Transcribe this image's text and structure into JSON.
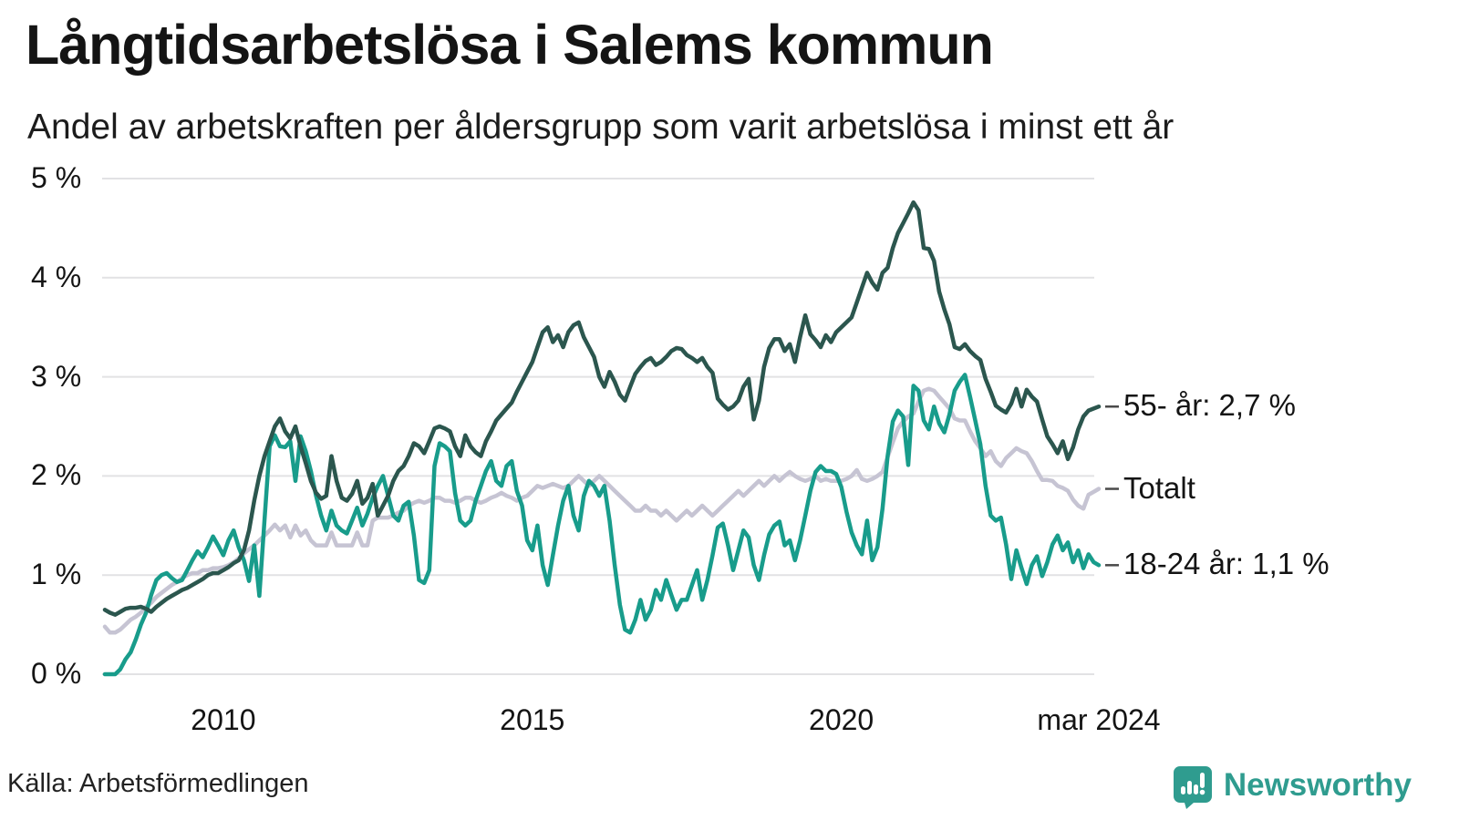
{
  "header": {
    "title": "Långtidsarbetslösa i Salems kommun",
    "subtitle": "Andel av arbetskraften per åldersgrupp som varit arbetslösa i minst ett år"
  },
  "footer": {
    "source": "Källa: Arbetsförmedlingen",
    "brand": "Newsworthy"
  },
  "colors": {
    "background": "#ffffff",
    "text": "#141414",
    "gridline": "#e2e2e4",
    "legend_dash": "#4a4a4a",
    "brand_teal": "#2f9c8f",
    "series_55": "#2b564e",
    "series_totalt": "#c6c4d3",
    "series_1824": "#189c8b"
  },
  "chart_data": {
    "type": "line",
    "title": "Långtidsarbetslösa i Salems kommun",
    "subtitle": "Andel av arbetskraften per åldersgrupp som varit arbetslösa i minst ett år",
    "xlabel": "",
    "ylabel": "",
    "x_start": "2008-02",
    "x_end": "2024-03",
    "x_frequency": "monthly",
    "ylim": [
      0,
      5
    ],
    "grid": true,
    "legend_position": "right-of-line-end",
    "y_tick_labels": [
      "0 %",
      "1 %",
      "2 %",
      "3 %",
      "4 %",
      "5 %"
    ],
    "x_ticks": [
      {
        "label": "2010",
        "index": 23
      },
      {
        "label": "2015",
        "index": 83
      },
      {
        "label": "2020",
        "index": 143
      },
      {
        "label": "mar 2024",
        "index": 193
      }
    ],
    "series": [
      {
        "name": "Totalt",
        "end_label": "Totalt",
        "color": "#c6c4d3",
        "values": [
          0.48,
          0.42,
          0.42,
          0.45,
          0.5,
          0.55,
          0.58,
          0.62,
          0.68,
          0.72,
          0.78,
          0.82,
          0.86,
          0.9,
          0.93,
          0.97,
          1.0,
          1.02,
          1.02,
          1.05,
          1.05,
          1.07,
          1.07,
          1.08,
          1.1,
          1.13,
          1.17,
          1.22,
          1.26,
          1.3,
          1.35,
          1.4,
          1.45,
          1.51,
          1.45,
          1.5,
          1.38,
          1.5,
          1.4,
          1.45,
          1.35,
          1.3,
          1.3,
          1.3,
          1.43,
          1.3,
          1.3,
          1.3,
          1.3,
          1.43,
          1.3,
          1.3,
          1.55,
          1.58,
          1.58,
          1.58,
          1.6,
          1.63,
          1.65,
          1.7,
          1.73,
          1.75,
          1.73,
          1.75,
          1.78,
          1.78,
          1.75,
          1.75,
          1.73,
          1.75,
          1.78,
          1.78,
          1.75,
          1.73,
          1.75,
          1.78,
          1.8,
          1.83,
          1.8,
          1.78,
          1.75,
          1.78,
          1.8,
          1.85,
          1.9,
          1.88,
          1.9,
          1.92,
          1.9,
          1.88,
          1.9,
          1.95,
          2.0,
          1.95,
          1.9,
          1.95,
          2.0,
          1.95,
          1.9,
          1.85,
          1.8,
          1.75,
          1.7,
          1.65,
          1.65,
          1.7,
          1.65,
          1.65,
          1.6,
          1.65,
          1.6,
          1.55,
          1.6,
          1.65,
          1.6,
          1.65,
          1.7,
          1.65,
          1.6,
          1.65,
          1.7,
          1.75,
          1.8,
          1.85,
          1.8,
          1.85,
          1.9,
          1.95,
          1.9,
          1.95,
          2.0,
          1.95,
          2.0,
          2.04,
          2.0,
          1.97,
          1.95,
          1.97,
          2.0,
          1.95,
          1.97,
          1.95,
          1.95,
          1.95,
          1.97,
          2.0,
          2.06,
          1.97,
          1.95,
          1.97,
          2.0,
          2.04,
          2.19,
          2.34,
          2.48,
          2.55,
          2.6,
          2.63,
          2.75,
          2.86,
          2.88,
          2.86,
          2.8,
          2.74,
          2.68,
          2.58,
          2.56,
          2.56,
          2.45,
          2.35,
          2.28,
          2.2,
          2.25,
          2.15,
          2.1,
          2.18,
          2.23,
          2.28,
          2.25,
          2.23,
          2.15,
          2.05,
          1.96,
          1.96,
          1.95,
          1.9,
          1.88,
          1.85,
          1.76,
          1.7,
          1.67,
          1.81,
          1.84,
          1.87
        ]
      },
      {
        "name": "18-24 år",
        "end_label": "18-24 år: 1,1 %",
        "end_value": "1,1 %",
        "color": "#189c8b",
        "values": [
          0.0,
          0.0,
          0.0,
          0.05,
          0.15,
          0.22,
          0.35,
          0.5,
          0.62,
          0.8,
          0.95,
          1.0,
          1.02,
          0.97,
          0.93,
          0.95,
          1.05,
          1.15,
          1.24,
          1.18,
          1.28,
          1.39,
          1.3,
          1.2,
          1.35,
          1.45,
          1.28,
          1.15,
          0.94,
          1.3,
          0.79,
          1.56,
          2.3,
          2.41,
          2.3,
          2.29,
          2.35,
          1.95,
          2.4,
          2.25,
          2.05,
          1.8,
          1.6,
          1.45,
          1.65,
          1.5,
          1.45,
          1.42,
          1.55,
          1.68,
          1.5,
          1.62,
          1.78,
          1.9,
          2.0,
          1.8,
          1.6,
          1.55,
          1.7,
          1.74,
          1.4,
          0.95,
          0.92,
          1.05,
          2.1,
          2.33,
          2.3,
          2.25,
          1.83,
          1.55,
          1.5,
          1.55,
          1.75,
          1.9,
          2.05,
          2.15,
          1.95,
          1.9,
          2.1,
          2.15,
          1.85,
          1.7,
          1.35,
          1.25,
          1.5,
          1.1,
          0.9,
          1.2,
          1.5,
          1.75,
          1.9,
          1.6,
          1.45,
          1.8,
          1.95,
          1.9,
          1.8,
          1.9,
          1.55,
          1.1,
          0.7,
          0.45,
          0.42,
          0.55,
          0.75,
          0.55,
          0.65,
          0.85,
          0.75,
          0.95,
          0.8,
          0.65,
          0.75,
          0.75,
          0.9,
          1.05,
          0.75,
          0.95,
          1.2,
          1.48,
          1.52,
          1.3,
          1.05,
          1.25,
          1.45,
          1.38,
          1.1,
          0.95,
          1.2,
          1.41,
          1.5,
          1.54,
          1.3,
          1.35,
          1.15,
          1.35,
          1.6,
          1.85,
          2.04,
          2.1,
          2.05,
          2.05,
          2.02,
          1.89,
          1.64,
          1.43,
          1.3,
          1.21,
          1.55,
          1.15,
          1.28,
          1.67,
          2.2,
          2.55,
          2.66,
          2.6,
          2.11,
          2.91,
          2.86,
          2.56,
          2.47,
          2.7,
          2.53,
          2.44,
          2.62,
          2.86,
          2.95,
          3.02,
          2.8,
          2.56,
          2.32,
          1.9,
          1.6,
          1.55,
          1.58,
          1.31,
          0.96,
          1.25,
          1.07,
          0.91,
          1.1,
          1.19,
          0.99,
          1.13,
          1.31,
          1.4,
          1.25,
          1.33,
          1.13,
          1.25,
          1.07,
          1.21,
          1.13,
          1.1
        ]
      },
      {
        "name": "55- år",
        "end_label": "55- år: 2,7 %",
        "end_value": "2,7 %",
        "color": "#2b564e",
        "values": [
          0.65,
          0.62,
          0.6,
          0.63,
          0.66,
          0.67,
          0.67,
          0.68,
          0.66,
          0.63,
          0.68,
          0.72,
          0.76,
          0.79,
          0.82,
          0.85,
          0.87,
          0.9,
          0.93,
          0.96,
          1.0,
          1.02,
          1.02,
          1.05,
          1.08,
          1.12,
          1.15,
          1.25,
          1.45,
          1.75,
          2.0,
          2.2,
          2.35,
          2.5,
          2.58,
          2.45,
          2.38,
          2.5,
          2.3,
          2.13,
          1.95,
          1.83,
          1.77,
          1.8,
          2.2,
          1.95,
          1.78,
          1.75,
          1.82,
          1.95,
          1.72,
          1.78,
          1.92,
          1.6,
          1.7,
          1.8,
          1.95,
          2.05,
          2.1,
          2.2,
          2.33,
          2.3,
          2.23,
          2.35,
          2.48,
          2.5,
          2.48,
          2.45,
          2.3,
          2.2,
          2.41,
          2.3,
          2.24,
          2.2,
          2.35,
          2.45,
          2.56,
          2.62,
          2.68,
          2.74,
          2.85,
          2.95,
          3.05,
          3.15,
          3.3,
          3.45,
          3.5,
          3.35,
          3.42,
          3.3,
          3.45,
          3.52,
          3.55,
          3.4,
          3.3,
          3.2,
          3.0,
          2.9,
          3.05,
          2.95,
          2.82,
          2.76,
          2.9,
          3.03,
          3.1,
          3.16,
          3.19,
          3.12,
          3.15,
          3.2,
          3.26,
          3.29,
          3.28,
          3.22,
          3.19,
          3.15,
          3.19,
          3.1,
          3.04,
          2.78,
          2.72,
          2.67,
          2.7,
          2.76,
          2.9,
          2.98,
          2.57,
          2.76,
          3.1,
          3.29,
          3.38,
          3.38,
          3.26,
          3.33,
          3.15,
          3.4,
          3.62,
          3.43,
          3.37,
          3.3,
          3.42,
          3.35,
          3.45,
          3.5,
          3.55,
          3.6,
          3.75,
          3.9,
          4.05,
          3.95,
          3.88,
          4.05,
          4.1,
          4.3,
          4.45,
          4.55,
          4.65,
          4.76,
          4.68,
          4.3,
          4.29,
          4.17,
          3.86,
          3.68,
          3.53,
          3.3,
          3.28,
          3.33,
          3.26,
          3.21,
          3.17,
          2.98,
          2.85,
          2.71,
          2.67,
          2.64,
          2.73,
          2.88,
          2.7,
          2.87,
          2.8,
          2.75,
          2.57,
          2.4,
          2.32,
          2.23,
          2.35,
          2.17,
          2.29,
          2.47,
          2.6,
          2.66,
          2.68,
          2.7
        ]
      }
    ]
  }
}
